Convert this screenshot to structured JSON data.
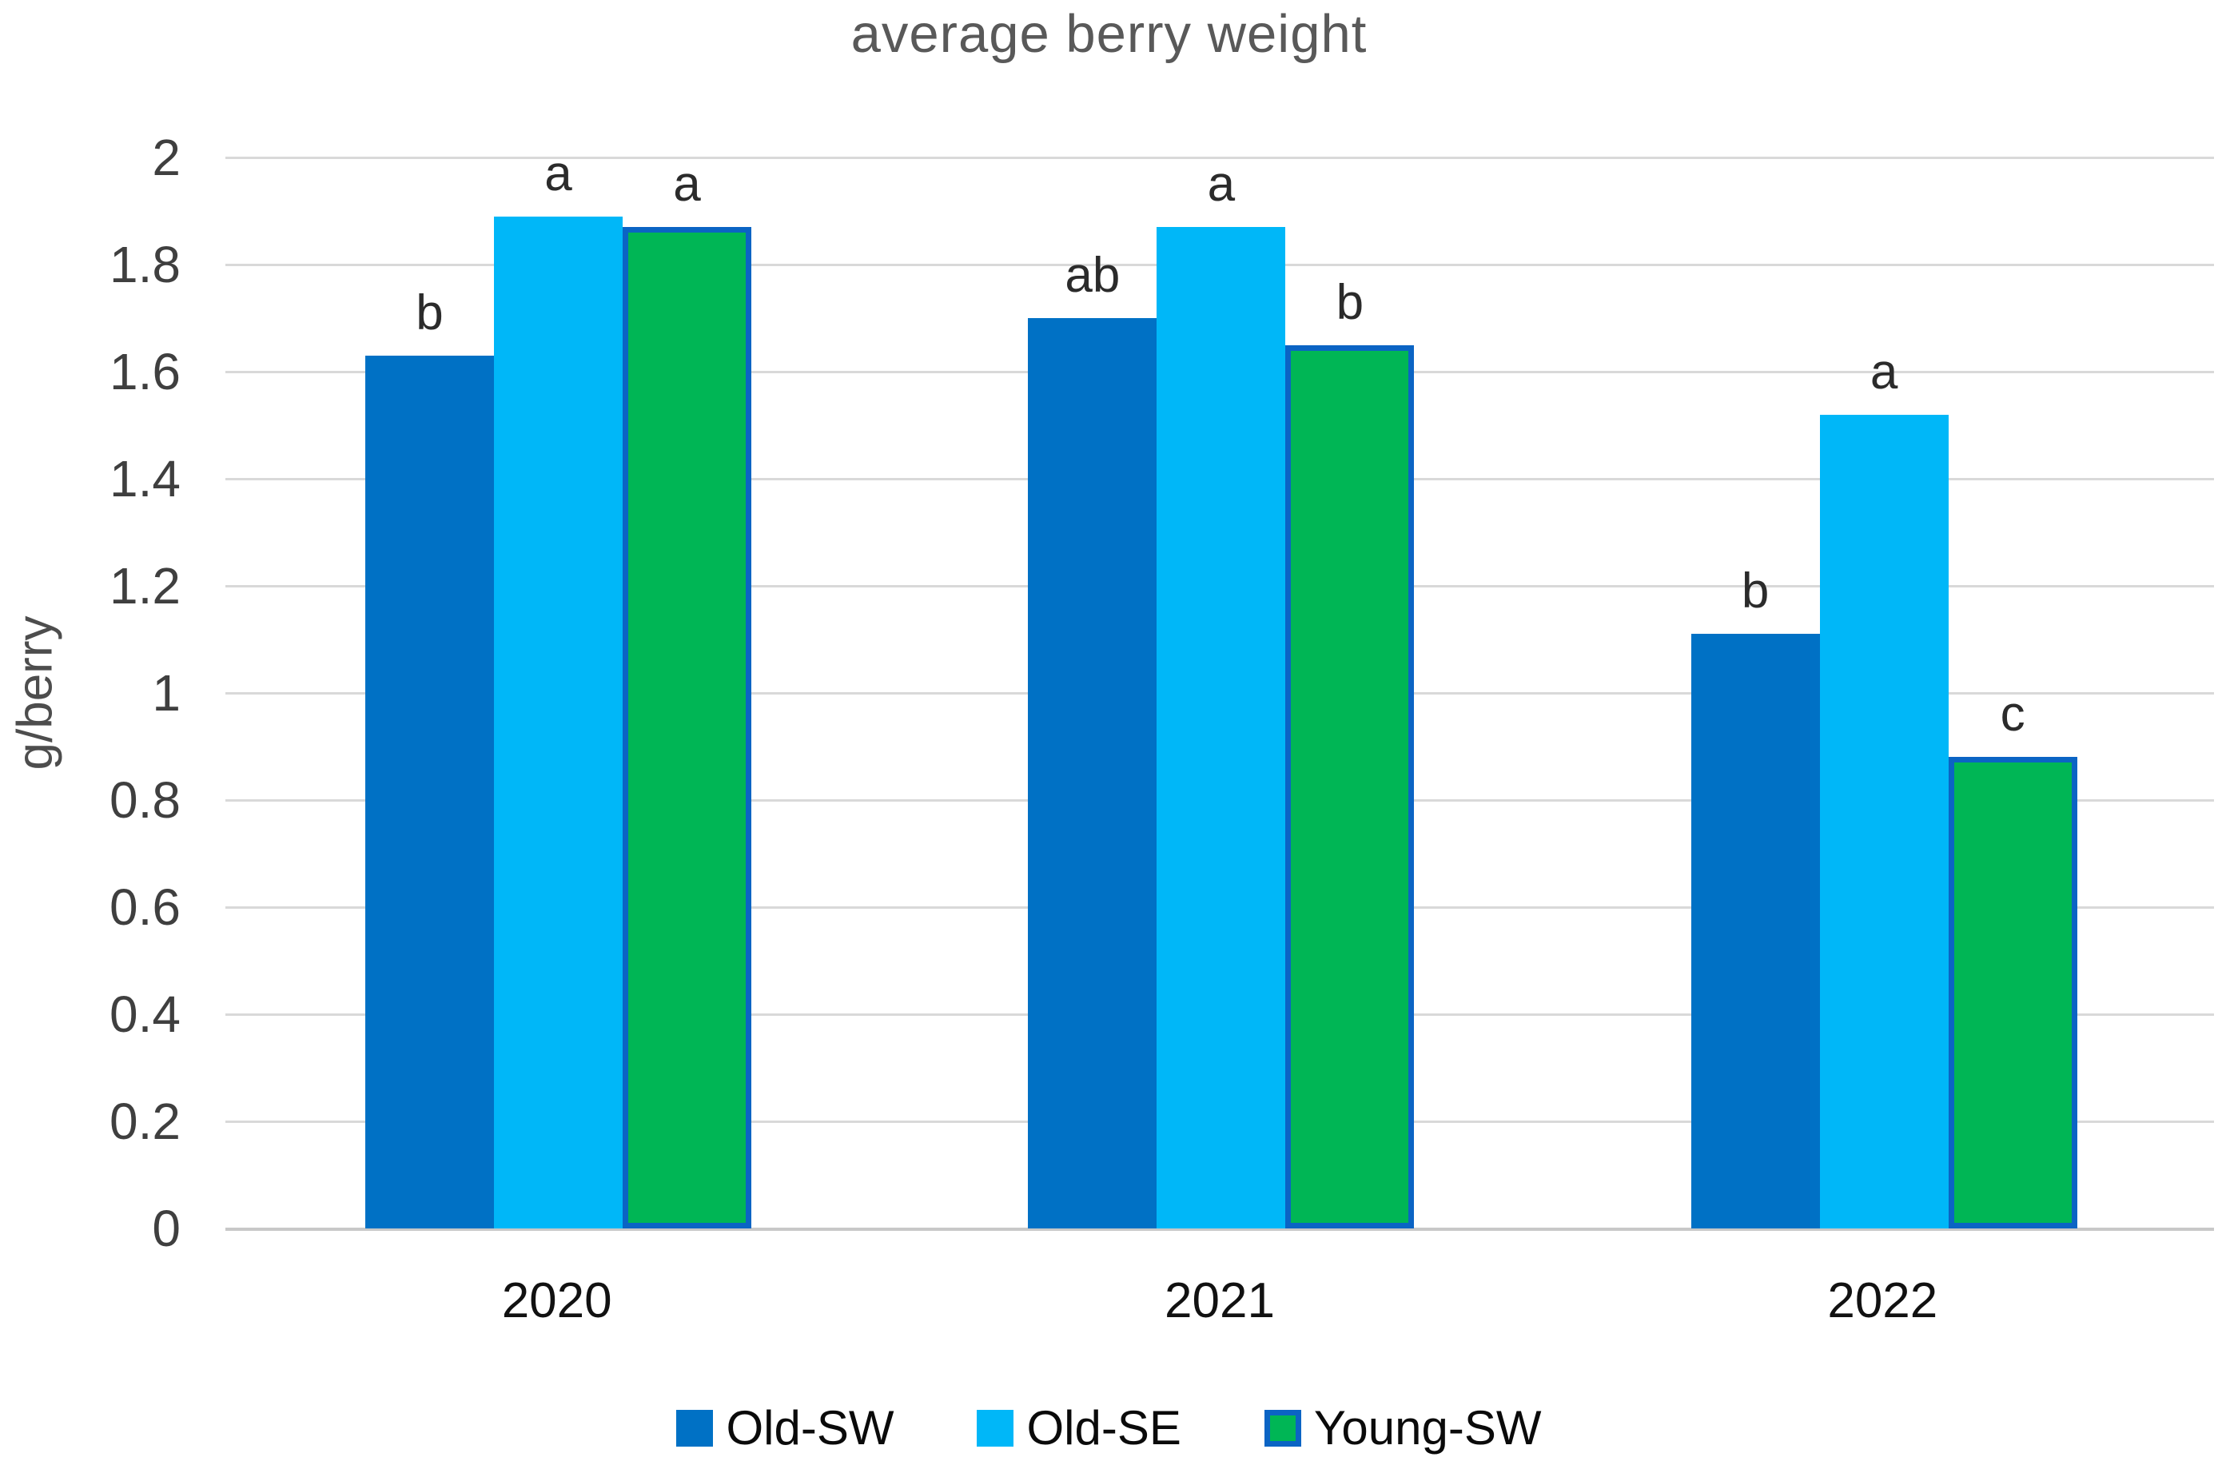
{
  "title": "average berry weight",
  "y_axis": {
    "label": "g/berry",
    "tick_labels": [
      "2",
      "1.8",
      "1.6",
      "1.4",
      "1.2",
      "1",
      "0.8",
      "0.6",
      "0.4",
      "0.2",
      "0"
    ],
    "tick_values": [
      2,
      1.8,
      1.6,
      1.4,
      1.2,
      1,
      0.8,
      0.6,
      0.4,
      0.2,
      0
    ]
  },
  "colors": {
    "title_gray": "#595959",
    "tick_gray": "#3f3f3f",
    "gridline": "#d9d9d9",
    "old_sw_blue": "#0071c5",
    "old_se_lightblue": "#00b7f8",
    "young_sw_green": "#00b655",
    "young_sw_border_blue": "#0b64c4",
    "letter_dark": "#2b2b2b"
  },
  "chart_data": {
    "type": "bar",
    "title": "average berry weight",
    "xlabel": "",
    "ylabel": "g/berry",
    "ylim": [
      0,
      2
    ],
    "ytick_step": 0.2,
    "grid": true,
    "legend_position": "bottom",
    "categories": [
      "2020",
      "2021",
      "2022"
    ],
    "series": [
      {
        "name": "Old-SW",
        "color": "#0071c5",
        "values": [
          1.63,
          1.7,
          1.11
        ],
        "letters": [
          "b",
          "ab",
          "b"
        ]
      },
      {
        "name": "Old-SE",
        "color": "#00b7f8",
        "values": [
          1.89,
          1.87,
          1.52
        ],
        "letters": [
          "a",
          "a",
          "a"
        ]
      },
      {
        "name": "Young-SW",
        "color": "#00b655",
        "border_color": "#0b64c4",
        "values": [
          1.87,
          1.65,
          0.88
        ],
        "letters": [
          "a",
          "b",
          "c"
        ]
      }
    ]
  }
}
